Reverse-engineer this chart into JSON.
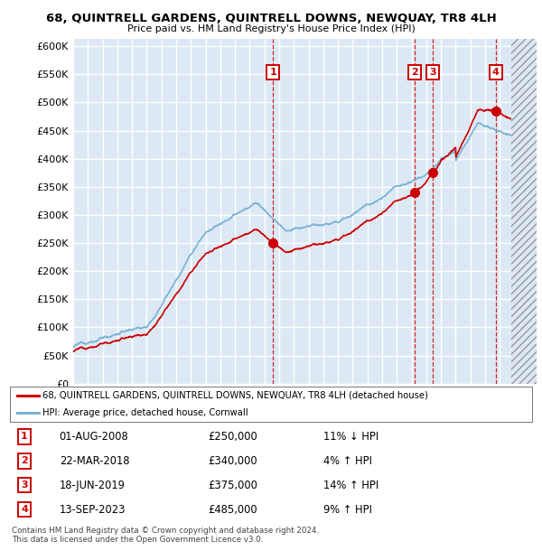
{
  "title": "68, QUINTRELL GARDENS, QUINTRELL DOWNS, NEWQUAY, TR8 4LH",
  "subtitle": "Price paid vs. HM Land Registry's House Price Index (HPI)",
  "ylim": [
    0,
    612500
  ],
  "yticks": [
    0,
    50000,
    100000,
    150000,
    200000,
    250000,
    300000,
    350000,
    400000,
    450000,
    500000,
    550000,
    600000
  ],
  "xlim_start": 1995.0,
  "xlim_end": 2026.5,
  "background_color": "#dce9f5",
  "grid_color": "#ffffff",
  "red_line_color": "#cc0000",
  "blue_line_color": "#7ab3d4",
  "future_start": 2024.75,
  "transactions": [
    {
      "num": 1,
      "date_x": 2008.583,
      "price": 250000
    },
    {
      "num": 2,
      "date_x": 2018.22,
      "price": 340000
    },
    {
      "num": 3,
      "date_x": 2019.46,
      "price": 375000
    },
    {
      "num": 4,
      "date_x": 2023.71,
      "price": 485000
    }
  ],
  "legend_line1": "68, QUINTRELL GARDENS, QUINTRELL DOWNS, NEWQUAY, TR8 4LH (detached house)",
  "legend_line2": "HPI: Average price, detached house, Cornwall",
  "footer1": "Contains HM Land Registry data © Crown copyright and database right 2024.",
  "footer2": "This data is licensed under the Open Government Licence v3.0.",
  "table_rows": [
    {
      "num": 1,
      "date": "01-AUG-2008",
      "price": "£250,000",
      "pct": "11% ↓ HPI"
    },
    {
      "num": 2,
      "date": "22-MAR-2018",
      "price": "£340,000",
      "pct": "4% ↑ HPI"
    },
    {
      "num": 3,
      "date": "18-JUN-2019",
      "price": "£375,000",
      "pct": "14% ↑ HPI"
    },
    {
      "num": 4,
      "date": "13-SEP-2023",
      "price": "£485,000",
      "pct": "9% ↑ HPI"
    }
  ]
}
